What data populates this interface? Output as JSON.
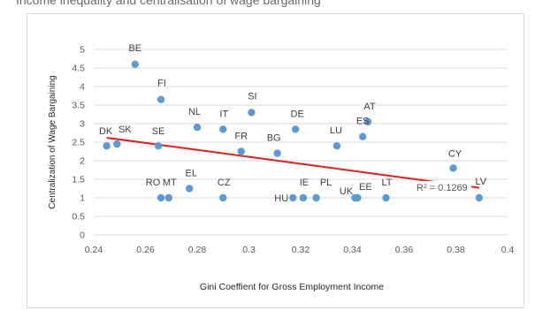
{
  "page": {
    "title": "Income inequality and centralisation of wage bargaining"
  },
  "chart_data": {
    "type": "scatter",
    "title": "",
    "xlabel": "Gini Coeffient for Gross Employment Income",
    "ylabel": "Centralization of Wage Bargaining",
    "xlim": [
      0.24,
      0.4
    ],
    "ylim": [
      0,
      5
    ],
    "xticks": [
      "0.24",
      "0.26",
      "0.28",
      "0.3",
      "0.32",
      "0.34",
      "0.36",
      "0.38",
      "0.4"
    ],
    "yticks": [
      "0",
      "0.5",
      "1",
      "1.5",
      "2",
      "2.5",
      "3",
      "3.5",
      "4",
      "4.5",
      "5"
    ],
    "grid": true,
    "points": [
      {
        "label": "BE",
        "x": 0.256,
        "y": 4.6
      },
      {
        "label": "FI",
        "x": 0.266,
        "y": 3.65
      },
      {
        "label": "NL",
        "x": 0.28,
        "y": 2.9
      },
      {
        "label": "IT",
        "x": 0.29,
        "y": 2.85
      },
      {
        "label": "SI",
        "x": 0.301,
        "y": 3.3
      },
      {
        "label": "DE",
        "x": 0.318,
        "y": 2.85
      },
      {
        "label": "AT",
        "x": 0.346,
        "y": 3.05
      },
      {
        "label": "ES",
        "x": 0.344,
        "y": 2.65
      },
      {
        "label": "LU",
        "x": 0.334,
        "y": 2.4
      },
      {
        "label": "DK",
        "x": 0.245,
        "y": 2.4
      },
      {
        "label": "SK",
        "x": 0.249,
        "y": 2.45
      },
      {
        "label": "SE",
        "x": 0.265,
        "y": 2.4
      },
      {
        "label": "FR",
        "x": 0.297,
        "y": 2.25
      },
      {
        "label": "BG",
        "x": 0.311,
        "y": 2.2
      },
      {
        "label": "CY",
        "x": 0.379,
        "y": 1.8
      },
      {
        "label": "EL",
        "x": 0.277,
        "y": 1.25
      },
      {
        "label": "RO",
        "x": 0.266,
        "y": 1.0
      },
      {
        "label": "MT",
        "x": 0.269,
        "y": 1.0
      },
      {
        "label": "CZ",
        "x": 0.29,
        "y": 1.0
      },
      {
        "label": "HU",
        "x": 0.317,
        "y": 1.0
      },
      {
        "label": "IE",
        "x": 0.321,
        "y": 1.0
      },
      {
        "label": "PL",
        "x": 0.326,
        "y": 1.0
      },
      {
        "label": "UK",
        "x": 0.341,
        "y": 1.0
      },
      {
        "label": "EE",
        "x": 0.342,
        "y": 1.0
      },
      {
        "label": "LT",
        "x": 0.353,
        "y": 1.0
      },
      {
        "label": "LV",
        "x": 0.389,
        "y": 1.0
      }
    ],
    "trendline": {
      "x": [
        0.245,
        0.389
      ],
      "y": [
        2.62,
        1.27
      ],
      "r2_label": "R² = 0.1269"
    },
    "colors": {
      "point": "#5b9bd5",
      "trend": "#e0201b",
      "grid": "#d9d9d9"
    }
  }
}
